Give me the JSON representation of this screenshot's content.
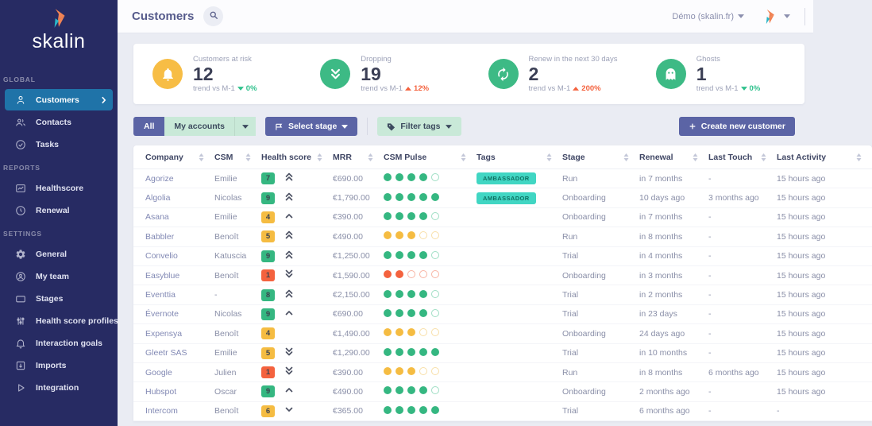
{
  "brand": {
    "name": "skalin"
  },
  "topbar": {
    "title": "Customers",
    "account_menu": "Démo (skalin.fr)"
  },
  "colors": {
    "sidebar_bg": "#272b63",
    "active_item": "#1f73a8",
    "indigo": "#5b64a5",
    "mint": "#c9e9d8",
    "green": "#35b781",
    "yellow": "#f5bc42",
    "red": "#f4623e",
    "teal_tag": "#41d6c3",
    "trend_up_red": "#f4623e",
    "trend_down_green": "#2fc18c"
  },
  "sidebar": {
    "sections": [
      {
        "label": "GLOBAL",
        "items": [
          {
            "label": "Customers",
            "icon": "customers-icon",
            "active": true
          },
          {
            "label": "Contacts",
            "icon": "contacts-icon",
            "active": false
          },
          {
            "label": "Tasks",
            "icon": "tasks-icon",
            "active": false
          }
        ]
      },
      {
        "label": "REPORTS",
        "items": [
          {
            "label": "Healthscore",
            "icon": "healthscore-icon",
            "active": false
          },
          {
            "label": "Renewal",
            "icon": "renewal-icon",
            "active": false
          }
        ]
      },
      {
        "label": "SETTINGS",
        "items": [
          {
            "label": "General",
            "icon": "gear-icon",
            "active": false
          },
          {
            "label": "My team",
            "icon": "team-icon",
            "active": false
          },
          {
            "label": "Stages",
            "icon": "stages-icon",
            "active": false
          },
          {
            "label": "Health score profiles",
            "icon": "profiles-icon",
            "active": false
          },
          {
            "label": "Interaction goals",
            "icon": "goals-icon",
            "active": false
          },
          {
            "label": "Imports",
            "icon": "imports-icon",
            "active": false
          },
          {
            "label": "Integration",
            "icon": "integration-icon",
            "active": false
          }
        ]
      }
    ]
  },
  "stats": {
    "cards": [
      {
        "icon": "bell-icon",
        "icon_color": "#f7bd45",
        "label": "Customers at risk",
        "value": "12",
        "trend_label": "trend vs M-1",
        "trend_dir": "down",
        "trend_value": "0%",
        "trend_color": "#2fc18c"
      },
      {
        "icon": "double-chevron-down-icon",
        "icon_color": "#3dba85",
        "label": "Dropping",
        "value": "19",
        "trend_label": "trend vs M-1",
        "trend_dir": "up",
        "trend_value": "12%",
        "trend_color": "#f4623e"
      },
      {
        "icon": "refresh-icon",
        "icon_color": "#3dba85",
        "label": "Renew in the next 30 days",
        "value": "2",
        "trend_label": "trend vs M-1",
        "trend_dir": "up",
        "trend_value": "200%",
        "trend_color": "#f4623e"
      },
      {
        "icon": "ghost-icon",
        "icon_color": "#3dba85",
        "label": "Ghosts",
        "value": "1",
        "trend_label": "trend vs M-1",
        "trend_dir": "down",
        "trend_value": "0%",
        "trend_color": "#2fc18c"
      }
    ]
  },
  "filters": {
    "scope_all": "All",
    "scope_mine": "My accounts",
    "select_stage": "Select stage",
    "filter_tags": "Filter tags",
    "create_customer": "Create new customer"
  },
  "table": {
    "columns": [
      "Company",
      "CSM",
      "Health score",
      "MRR",
      "CSM Pulse",
      "Tags",
      "Stage",
      "Renewal",
      "Last Touch",
      "Last Activity"
    ],
    "rows": [
      {
        "company": "Agorize",
        "csm": "Emilie",
        "score": "7",
        "score_color": "green",
        "trend": "up2",
        "mrr": "€690.00",
        "pulse_filled": 4,
        "pulse_color": "green",
        "tags": [
          "AMBASSADOR"
        ],
        "stage": "Run",
        "renewal": "in 7 months",
        "last_touch": "-",
        "last_activity": "15 hours ago"
      },
      {
        "company": "Algolia",
        "csm": "Nicolas",
        "score": "9",
        "score_color": "green",
        "trend": "up2",
        "mrr": "€1,790.00",
        "pulse_filled": 5,
        "pulse_color": "green",
        "tags": [
          "AMBASSADOR"
        ],
        "stage": "Onboarding",
        "renewal": "10 days ago",
        "last_touch": "3 months ago",
        "last_activity": "15 hours ago"
      },
      {
        "company": "Asana",
        "csm": "Emilie",
        "score": "4",
        "score_color": "yellow",
        "trend": "up1",
        "mrr": "€390.00",
        "pulse_filled": 4,
        "pulse_color": "green",
        "tags": [],
        "stage": "Onboarding",
        "renewal": "in 7 months",
        "last_touch": "-",
        "last_activity": "15 hours ago"
      },
      {
        "company": "Babbler",
        "csm": "Benoît",
        "score": "5",
        "score_color": "yellow",
        "trend": "up2",
        "mrr": "€490.00",
        "pulse_filled": 3,
        "pulse_color": "yellow",
        "tags": [],
        "stage": "Run",
        "renewal": "in 8 months",
        "last_touch": "-",
        "last_activity": "15 hours ago"
      },
      {
        "company": "Convelio",
        "csm": "Katuscia",
        "score": "9",
        "score_color": "green",
        "trend": "up2",
        "mrr": "€1,250.00",
        "pulse_filled": 4,
        "pulse_color": "green",
        "tags": [],
        "stage": "Trial",
        "renewal": "in 4 months",
        "last_touch": "-",
        "last_activity": "15 hours ago"
      },
      {
        "company": "Easyblue",
        "csm": "Benoît",
        "score": "1",
        "score_color": "red",
        "trend": "down2",
        "mrr": "€1,590.00",
        "pulse_filled": 2,
        "pulse_color": "red",
        "tags": [],
        "stage": "Onboarding",
        "renewal": "in 3 months",
        "last_touch": "-",
        "last_activity": "15 hours ago"
      },
      {
        "company": "Eventtia",
        "csm": "-",
        "score": "8",
        "score_color": "green",
        "trend": "up2",
        "mrr": "€2,150.00",
        "pulse_filled": 4,
        "pulse_color": "green",
        "tags": [],
        "stage": "Trial",
        "renewal": "in 2 months",
        "last_touch": "-",
        "last_activity": "15 hours ago"
      },
      {
        "company": "Évernote",
        "csm": "Nicolas",
        "score": "9",
        "score_color": "green",
        "trend": "up1",
        "mrr": "€690.00",
        "pulse_filled": 4,
        "pulse_color": "green",
        "tags": [],
        "stage": "Trial",
        "renewal": "in 23 days",
        "last_touch": "-",
        "last_activity": "15 hours ago"
      },
      {
        "company": "Expensya",
        "csm": "Benoît",
        "score": "4",
        "score_color": "yellow",
        "trend": "none",
        "mrr": "€1,490.00",
        "pulse_filled": 3,
        "pulse_color": "yellow",
        "tags": [],
        "stage": "Onboarding",
        "renewal": "24 days ago",
        "last_touch": "-",
        "last_activity": "15 hours ago"
      },
      {
        "company": "Gleetr SAS",
        "csm": "Emilie",
        "score": "5",
        "score_color": "yellow",
        "trend": "down2",
        "mrr": "€1,290.00",
        "pulse_filled": 5,
        "pulse_color": "green",
        "tags": [],
        "stage": "Trial",
        "renewal": "in 10 months",
        "last_touch": "-",
        "last_activity": "15 hours ago"
      },
      {
        "company": "Google",
        "csm": "Julien",
        "score": "1",
        "score_color": "red",
        "trend": "down2",
        "mrr": "€390.00",
        "pulse_filled": 3,
        "pulse_color": "yellow",
        "tags": [],
        "stage": "Run",
        "renewal": "in 8 months",
        "last_touch": "6 months ago",
        "last_activity": "15 hours ago"
      },
      {
        "company": "Hubspot",
        "csm": "Oscar",
        "score": "9",
        "score_color": "green",
        "trend": "up1",
        "mrr": "€490.00",
        "pulse_filled": 4,
        "pulse_color": "green",
        "tags": [],
        "stage": "Onboarding",
        "renewal": "2 months ago",
        "last_touch": "-",
        "last_activity": "15 hours ago"
      },
      {
        "company": "Intercom",
        "csm": "Benoît",
        "score": "6",
        "score_color": "yellow",
        "trend": "down1",
        "mrr": "€365.00",
        "pulse_filled": 5,
        "pulse_color": "green",
        "tags": [],
        "stage": "Trial",
        "renewal": "6 months ago",
        "last_touch": "-",
        "last_activity": "-"
      }
    ]
  }
}
